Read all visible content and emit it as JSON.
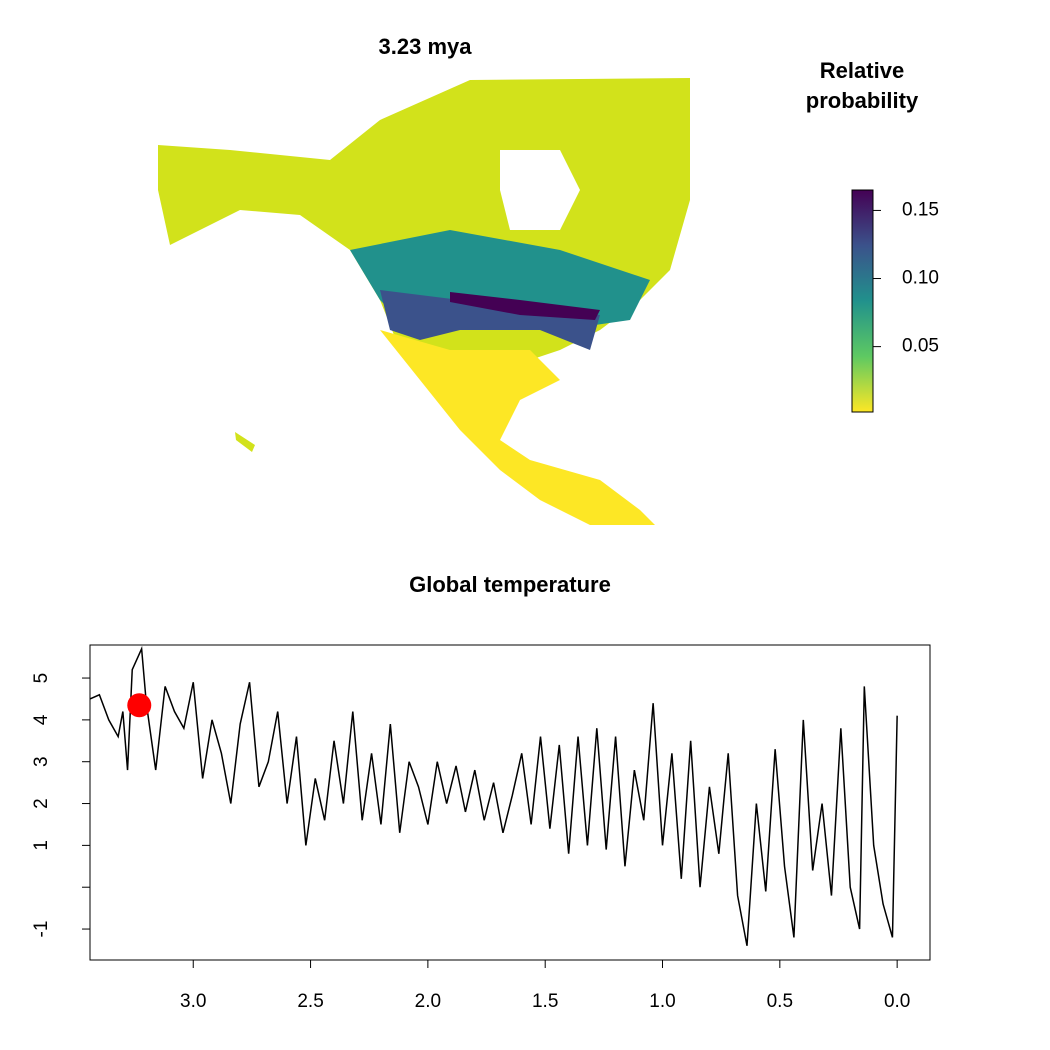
{
  "map": {
    "title": "3.23 mya"
  },
  "colorbar": {
    "title_lines": [
      "Relative",
      "probability"
    ],
    "lim": [
      0.002,
      0.165
    ],
    "ticks": [
      {
        "value": 0.05,
        "label": "0.05"
      },
      {
        "value": 0.1,
        "label": "0.10"
      },
      {
        "value": 0.15,
        "label": "0.15"
      }
    ],
    "colors": [
      "#fde725",
      "#5ec962",
      "#21918c",
      "#3b528b",
      "#440154"
    ]
  },
  "chart_data": {
    "type": "line",
    "title": "Global temperature",
    "x": [
      3.44,
      3.4,
      3.36,
      3.32,
      3.3,
      3.28,
      3.26,
      3.22,
      3.2,
      3.16,
      3.12,
      3.08,
      3.04,
      3.0,
      2.96,
      2.92,
      2.88,
      2.84,
      2.8,
      2.76,
      2.72,
      2.68,
      2.64,
      2.6,
      2.56,
      2.52,
      2.48,
      2.44,
      2.4,
      2.36,
      2.32,
      2.28,
      2.24,
      2.2,
      2.16,
      2.12,
      2.08,
      2.04,
      2.0,
      1.96,
      1.92,
      1.88,
      1.84,
      1.8,
      1.76,
      1.72,
      1.68,
      1.64,
      1.6,
      1.56,
      1.52,
      1.48,
      1.44,
      1.4,
      1.36,
      1.32,
      1.28,
      1.24,
      1.2,
      1.16,
      1.12,
      1.08,
      1.04,
      1.0,
      0.96,
      0.92,
      0.88,
      0.84,
      0.8,
      0.76,
      0.72,
      0.68,
      0.64,
      0.6,
      0.56,
      0.52,
      0.48,
      0.44,
      0.4,
      0.36,
      0.32,
      0.28,
      0.24,
      0.2,
      0.16,
      0.14,
      0.1,
      0.06,
      0.02,
      0.0
    ],
    "series": [
      {
        "color": "#000000",
        "values": [
          4.5,
          4.6,
          4.0,
          3.6,
          4.2,
          2.8,
          5.2,
          5.7,
          4.4,
          2.8,
          4.8,
          4.2,
          3.8,
          4.9,
          2.6,
          4.0,
          3.2,
          2.0,
          3.9,
          4.9,
          2.4,
          3.0,
          4.2,
          2.0,
          3.6,
          1.0,
          2.6,
          1.6,
          3.5,
          2.0,
          4.2,
          1.6,
          3.2,
          1.5,
          3.9,
          1.3,
          3.0,
          2.4,
          1.5,
          3.0,
          2.0,
          2.9,
          1.8,
          2.8,
          1.6,
          2.5,
          1.3,
          2.2,
          3.2,
          1.5,
          3.6,
          1.4,
          3.4,
          0.8,
          3.6,
          1.0,
          3.8,
          0.9,
          3.6,
          0.5,
          2.8,
          1.6,
          4.4,
          1.0,
          3.2,
          0.2,
          3.5,
          0.0,
          2.4,
          0.8,
          3.2,
          -0.2,
          -1.4,
          2.0,
          -0.1,
          3.3,
          0.5,
          -1.2,
          4.0,
          0.4,
          2.0,
          -0.2,
          3.8,
          0.0,
          -1.0,
          4.8,
          1.0,
          -0.4,
          -1.2,
          4.1
        ]
      }
    ],
    "marker": {
      "x": 3.23,
      "y": 4.35,
      "color": "#ff0000"
    },
    "xlim": [
      3.44,
      -0.14
    ],
    "ylim": [
      -1.74,
      5.79
    ],
    "xticks": [
      {
        "value": 3,
        "label": "3.0"
      },
      2.5,
      {
        "value": 2,
        "label": "2.0"
      },
      1.5,
      {
        "value": 1,
        "label": "1.0"
      },
      0.5,
      {
        "value": 0,
        "label": "0.0"
      }
    ],
    "yticks": [
      -1,
      {
        "value": 0,
        "label": null
      },
      1,
      2,
      3,
      4,
      5
    ]
  }
}
